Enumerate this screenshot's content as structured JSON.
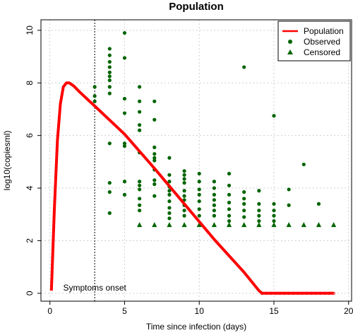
{
  "chart_data": {
    "type": "scatter",
    "title": "Population",
    "xlabel": "Time since infection (days)",
    "ylabel": "log10(copiesml)",
    "xlim": [
      -0.6,
      20.2
    ],
    "ylim": [
      -0.3,
      10.4
    ],
    "xticks": [
      0,
      5,
      10,
      15,
      20
    ],
    "yticks": [
      0,
      2,
      4,
      6,
      8,
      10
    ],
    "grid": true,
    "legend_position": "top-right",
    "annotation": {
      "text": "Symptoms onset",
      "x": 3,
      "y": 0
    },
    "vline_x": 3,
    "colors": {
      "population": "#ff0000",
      "observed": "#006400",
      "censored": "#006400",
      "grid": "#d0d0d0"
    },
    "series": [
      {
        "name": "Population",
        "kind": "line",
        "points": [
          [
            0.1,
            0.1
          ],
          [
            0.3,
            3.2
          ],
          [
            0.5,
            5.8
          ],
          [
            0.7,
            7.2
          ],
          [
            0.9,
            7.85
          ],
          [
            1.1,
            8.0
          ],
          [
            1.3,
            8.0
          ],
          [
            1.6,
            7.88
          ],
          [
            2.0,
            7.65
          ],
          [
            3.0,
            7.12
          ],
          [
            5.0,
            6.05
          ],
          [
            7.0,
            4.75
          ],
          [
            9.0,
            3.4
          ],
          [
            11.0,
            2.05
          ],
          [
            13.0,
            0.8
          ],
          [
            14.0,
            0.1
          ],
          [
            14.2,
            0.0
          ],
          [
            15.0,
            0.0
          ],
          [
            17.0,
            0.0
          ],
          [
            19.0,
            0.0
          ]
        ]
      },
      {
        "name": "Observed",
        "kind": "points",
        "marker": "circle",
        "points": [
          [
            3,
            7.85
          ],
          [
            3,
            7.5
          ],
          [
            3,
            7.3
          ],
          [
            4,
            9.3
          ],
          [
            4,
            9.05
          ],
          [
            4,
            8.8
          ],
          [
            4,
            8.6
          ],
          [
            4,
            8.4
          ],
          [
            4,
            8.25
          ],
          [
            4,
            8.1
          ],
          [
            4,
            7.85
          ],
          [
            4,
            7.6
          ],
          [
            4,
            5.7
          ],
          [
            4,
            4.2
          ],
          [
            4,
            3.85
          ],
          [
            4,
            3.05
          ],
          [
            5,
            9.9
          ],
          [
            5,
            8.95
          ],
          [
            5,
            7.4
          ],
          [
            5,
            6.85
          ],
          [
            5,
            5.7
          ],
          [
            5,
            5.6
          ],
          [
            5,
            4.25
          ],
          [
            5,
            3.75
          ],
          [
            6,
            7.85
          ],
          [
            6,
            7.3
          ],
          [
            6,
            6.9
          ],
          [
            6,
            6.4
          ],
          [
            6,
            6.2
          ],
          [
            6,
            5.35
          ],
          [
            6,
            4.25
          ],
          [
            6,
            4.1
          ],
          [
            6,
            3.95
          ],
          [
            6,
            3.6
          ],
          [
            6,
            3.35
          ],
          [
            6,
            3.15
          ],
          [
            7,
            7.3
          ],
          [
            7,
            6.6
          ],
          [
            7,
            5.55
          ],
          [
            7,
            5.3
          ],
          [
            7,
            5.15
          ],
          [
            7,
            5.05
          ],
          [
            7,
            4.7
          ],
          [
            7,
            4.3
          ],
          [
            7,
            4.15
          ],
          [
            7,
            3.7
          ],
          [
            8,
            5.15
          ],
          [
            8,
            4.5
          ],
          [
            8,
            4.25
          ],
          [
            8,
            4.05
          ],
          [
            8,
            3.9
          ],
          [
            8,
            3.75
          ],
          [
            8,
            3.5
          ],
          [
            8,
            3.25
          ],
          [
            8,
            3.05
          ],
          [
            8,
            2.85
          ],
          [
            9,
            4.65
          ],
          [
            9,
            4.5
          ],
          [
            9,
            4.35
          ],
          [
            9,
            4.2
          ],
          [
            9,
            3.9
          ],
          [
            9,
            3.7
          ],
          [
            9,
            3.55
          ],
          [
            9,
            3.35
          ],
          [
            9,
            3.15
          ],
          [
            9,
            2.95
          ],
          [
            10,
            4.55
          ],
          [
            10,
            4.25
          ],
          [
            10,
            3.95
          ],
          [
            10,
            3.75
          ],
          [
            10,
            3.5
          ],
          [
            10,
            3.2
          ],
          [
            10,
            2.95
          ],
          [
            11,
            4.25
          ],
          [
            11,
            4.0
          ],
          [
            11,
            3.75
          ],
          [
            11,
            3.55
          ],
          [
            11,
            3.35
          ],
          [
            11,
            3.15
          ],
          [
            11,
            2.95
          ],
          [
            12,
            4.55
          ],
          [
            12,
            4.1
          ],
          [
            12,
            3.75
          ],
          [
            12,
            3.45
          ],
          [
            12,
            3.2
          ],
          [
            12,
            2.95
          ],
          [
            12,
            2.75
          ],
          [
            13,
            8.6
          ],
          [
            13,
            3.85
          ],
          [
            13,
            3.6
          ],
          [
            13,
            3.4
          ],
          [
            13,
            3.15
          ],
          [
            13,
            2.9
          ],
          [
            14,
            3.9
          ],
          [
            14,
            3.4
          ],
          [
            14,
            3.15
          ],
          [
            14,
            2.95
          ],
          [
            14,
            2.75
          ],
          [
            15,
            6.75
          ],
          [
            15,
            3.4
          ],
          [
            15,
            3.15
          ],
          [
            15,
            2.95
          ],
          [
            15,
            2.75
          ],
          [
            16,
            3.95
          ],
          [
            16,
            3.35
          ],
          [
            17,
            4.9
          ],
          [
            18,
            3.4
          ]
        ]
      },
      {
        "name": "Censored",
        "kind": "points",
        "marker": "triangle",
        "points": [
          [
            6,
            2.6
          ],
          [
            7,
            2.6
          ],
          [
            8,
            2.6
          ],
          [
            9,
            2.6
          ],
          [
            10,
            2.6
          ],
          [
            11,
            2.6
          ],
          [
            12,
            2.6
          ],
          [
            13,
            2.6
          ],
          [
            14,
            2.6
          ],
          [
            15,
            2.6
          ],
          [
            16,
            2.6
          ],
          [
            17,
            2.6
          ],
          [
            18,
            2.6
          ],
          [
            19,
            2.6
          ]
        ]
      }
    ]
  }
}
